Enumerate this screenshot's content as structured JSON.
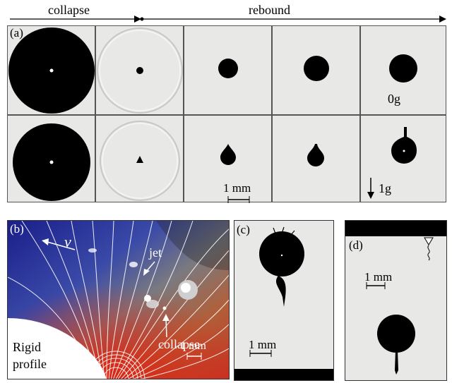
{
  "header": {
    "collapse": "collapse",
    "rebound": "rebound"
  },
  "panel_a": {
    "label": "(a)",
    "row1_note": "0g",
    "row2_note": "1g",
    "scale": "1 mm"
  },
  "panel_b": {
    "label": "(b)",
    "velocity": "v",
    "jet": "jet",
    "collapse": "collapse",
    "rigid_line1": "Rigid",
    "rigid_line2": "profile",
    "scale": "1 mm"
  },
  "panel_c": {
    "label": "(c)",
    "scale": "1 mm"
  },
  "panel_d": {
    "label": "(d)",
    "scale": "1 mm"
  }
}
